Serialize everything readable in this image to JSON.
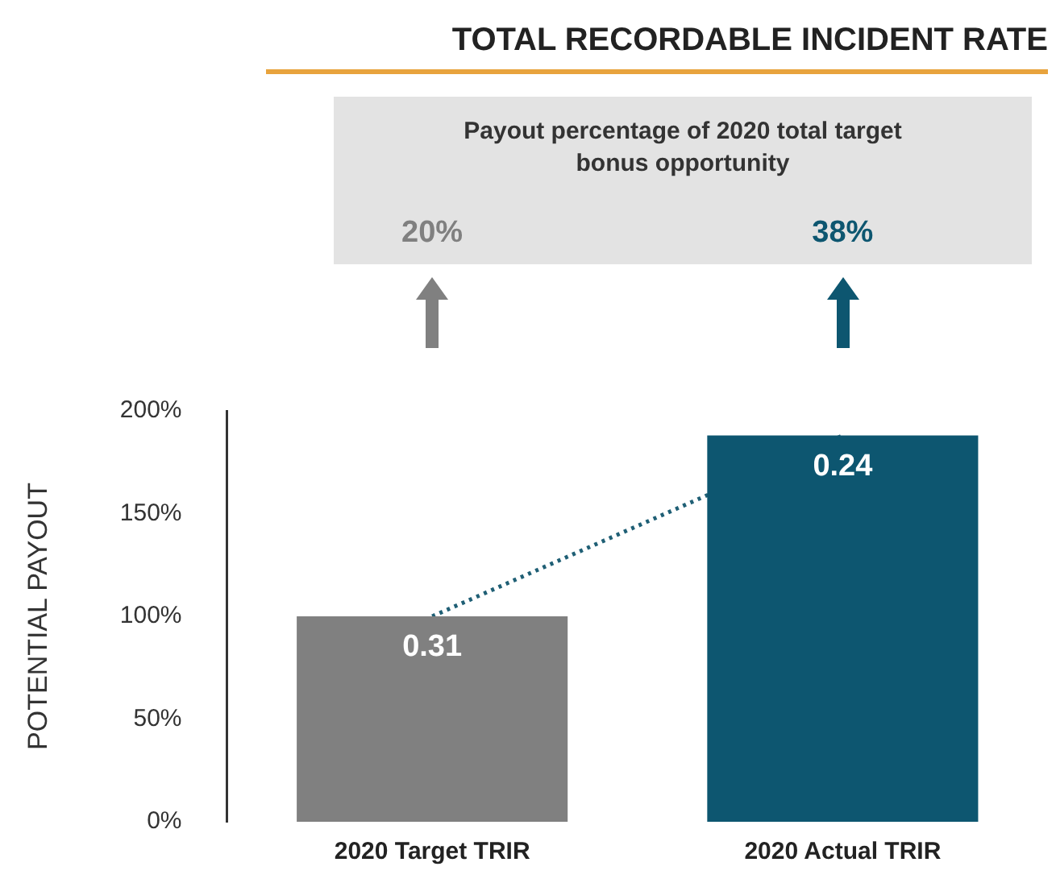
{
  "chart_data": {
    "type": "bar",
    "title": "TOTAL RECORDABLE INCIDENT RATE",
    "ylabel": "POTENTIAL PAYOUT",
    "categories": [
      "2020 Target TRIR",
      "2020 Actual TRIR"
    ],
    "series": [
      {
        "values": [
          100,
          188
        ],
        "colors": [
          "#808080",
          "#0d5670"
        ]
      },
      {
        "type": "line",
        "values": [
          100,
          188
        ],
        "color": "#1f5f75",
        "line_style": "dotted",
        "marker": "none"
      }
    ],
    "annotations": [
      "Payout percentage of 2020 total target bonus opportunity",
      "20%",
      "38%",
      {
        "text": "0.31",
        "x": "2020 Target TRIR",
        "y": 100
      },
      {
        "text": "0.24",
        "x": "2020 Actual TRIR",
        "y": 188
      }
    ],
    "ylim": [
      0,
      200
    ],
    "yticks": [
      {
        "value": 0,
        "label": "0%"
      },
      {
        "value": 50,
        "label": "50%"
      },
      {
        "value": 100,
        "label": "100%"
      },
      {
        "value": 150,
        "label": "150%"
      },
      {
        "value": 200,
        "label": "200%"
      }
    ],
    "grid": false,
    "legend": false
  }
}
